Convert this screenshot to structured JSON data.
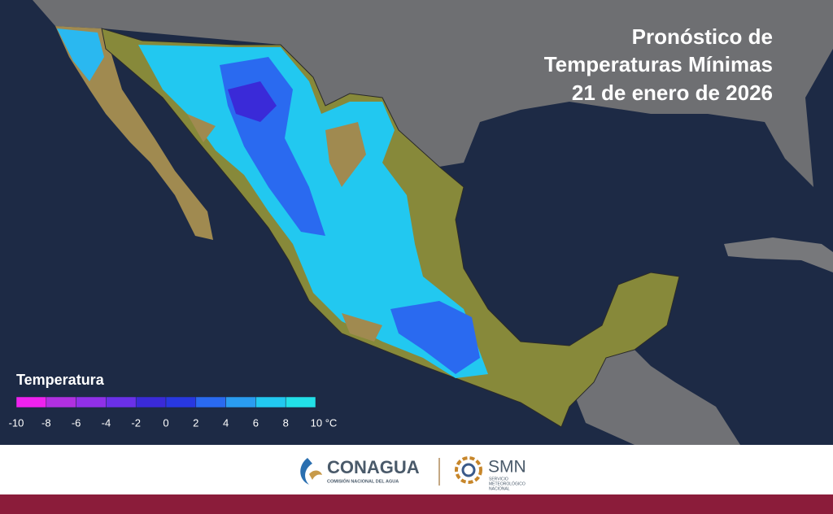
{
  "title": [
    "Pronóstico de",
    "Temperaturas Mínimas",
    "21 de enero de 2026"
  ],
  "legend": {
    "title": "Temperatura",
    "ticks": [
      -10,
      -8,
      -6,
      -4,
      -2,
      0,
      2,
      4,
      6,
      8,
      {
        "value": 10,
        "label": "10 °C"
      }
    ],
    "colors": [
      "#ee22ee",
      "#b030e0",
      "#9030e8",
      "#6a30e8",
      "#3a2ad8",
      "#2838e0",
      "#2a6af0",
      "#2a9cf0",
      "#22c8f0",
      "#22e0e8"
    ]
  },
  "footer": {
    "conagua": {
      "name": "CONAGUA",
      "subtitle": "COMISIÓN NACIONAL DEL AGUA"
    },
    "smn": {
      "name": "SMN",
      "subtitle": [
        "SERVICIO",
        "METEOROLÓGICO",
        "NACIONAL"
      ]
    }
  }
}
